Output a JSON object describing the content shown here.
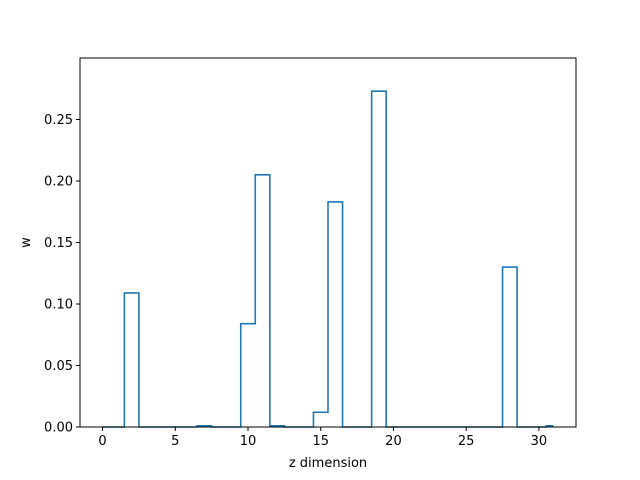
{
  "chart_data": {
    "type": "step",
    "xlabel": "z dimension",
    "ylabel": "w",
    "xlim": [
      -1.55,
      32.55
    ],
    "ylim": [
      0,
      0.3
    ],
    "xticks": [
      0,
      5,
      10,
      15,
      20,
      25,
      30
    ],
    "yticks": [
      0.0,
      0.05,
      0.1,
      0.15,
      0.2,
      0.25
    ],
    "xtick_labels": [
      "0",
      "5",
      "10",
      "15",
      "20",
      "25",
      "30"
    ],
    "ytick_labels": [
      "0.00",
      "0.05",
      "0.10",
      "0.15",
      "0.20",
      "0.25"
    ],
    "grid": false,
    "line_color": "#1f77b4",
    "x": [
      0,
      1,
      2,
      3,
      4,
      5,
      6,
      7,
      8,
      9,
      10,
      11,
      12,
      13,
      14,
      15,
      16,
      17,
      18,
      19,
      20,
      21,
      22,
      23,
      24,
      25,
      26,
      27,
      28,
      29,
      30,
      31
    ],
    "values": [
      0.0,
      0.0,
      0.109,
      0.0,
      0.0,
      0.0,
      0.0,
      0.001,
      0.0,
      0.0,
      0.084,
      0.205,
      0.001,
      0.0,
      0.0,
      0.012,
      0.183,
      0.0,
      0.0,
      0.273,
      0.0,
      0.0,
      0.0,
      0.0,
      0.0,
      0.0,
      0.0,
      0.0,
      0.13,
      0.0,
      0.0,
      0.001
    ]
  }
}
